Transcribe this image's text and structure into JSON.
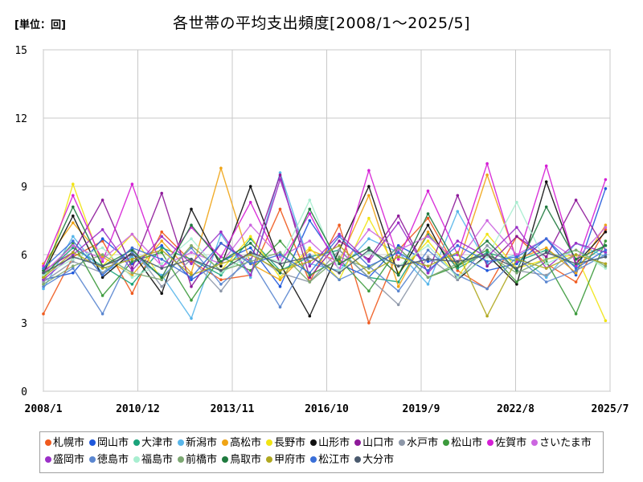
{
  "chart_data": {
    "type": "line",
    "title": "各世帯の平均支出頻度[2008/1～2025/5]",
    "unit_label": "[単位：回]",
    "ylim": [
      0,
      15
    ],
    "y_ticks": [
      "0",
      "3",
      "6",
      "9",
      "12",
      "15"
    ],
    "x_range": [
      "2008/1",
      "2025/7"
    ],
    "x_ticks": [
      "2008/1",
      "2010/12",
      "2013/11",
      "2016/10",
      "2019/9",
      "2022/8",
      "2025/7"
    ],
    "grid": true,
    "legend_position": "bottom",
    "series": [
      {
        "name": "札幌市",
        "color": "#f05a1e",
        "values": [
          3.4,
          5.9,
          6.6,
          4.3,
          7.0,
          5.7,
          4.9,
          5.1,
          8.0,
          4.8,
          7.3,
          3.0,
          6.2,
          7.6,
          5.3,
          4.5,
          6.8,
          5.6,
          4.8,
          7.1
        ]
      },
      {
        "name": "岡山市",
        "color": "#1f58dc",
        "values": [
          4.9,
          5.2,
          6.7,
          5.6,
          6.4,
          4.9,
          5.7,
          6.3,
          4.6,
          7.5,
          5.6,
          5.0,
          6.4,
          5.7,
          6.0,
          5.3,
          5.6,
          6.7,
          5.1,
          8.9
        ]
      },
      {
        "name": "大津市",
        "color": "#1aa37a",
        "values": [
          5.1,
          6.3,
          5.5,
          4.7,
          6.3,
          5.8,
          5.1,
          6.7,
          5.3,
          5.9,
          6.2,
          5.0,
          4.8,
          6.9,
          5.4,
          6.1,
          5.7,
          6.2,
          5.5,
          6.4
        ]
      },
      {
        "name": "新潟市",
        "color": "#58b6ea",
        "values": [
          4.5,
          6.8,
          5.2,
          5.9,
          5.1,
          3.2,
          6.9,
          5.0,
          9.6,
          5.6,
          5.3,
          6.7,
          6.1,
          4.7,
          7.9,
          5.6,
          6.0,
          5.0,
          6.5,
          5.9
        ]
      },
      {
        "name": "高松市",
        "color": "#f0a415",
        "values": [
          5.6,
          7.4,
          5.9,
          5.1,
          6.6,
          5.2,
          9.8,
          5.6,
          4.9,
          6.2,
          5.7,
          8.6,
          4.6,
          7.0,
          5.5,
          9.5,
          5.8,
          6.3,
          5.2,
          7.3
        ]
      },
      {
        "name": "長野市",
        "color": "#f1e414",
        "values": [
          4.7,
          9.1,
          5.5,
          6.9,
          4.9,
          6.4,
          5.3,
          6.8,
          5.0,
          6.3,
          4.9,
          7.6,
          5.2,
          6.6,
          5.0,
          6.9,
          5.4,
          5.8,
          6.0,
          3.1
        ]
      },
      {
        "name": "山形市",
        "color": "#111111",
        "values": [
          5.2,
          7.7,
          5.0,
          6.1,
          4.3,
          8.0,
          5.5,
          9.0,
          5.6,
          3.3,
          6.2,
          9.0,
          5.1,
          7.3,
          4.9,
          6.0,
          4.7,
          9.2,
          5.6,
          7.0
        ]
      },
      {
        "name": "山口市",
        "color": "#8e1a9a",
        "values": [
          5.3,
          6.1,
          8.4,
          5.4,
          8.7,
          4.6,
          6.5,
          5.7,
          9.5,
          5.0,
          6.6,
          5.8,
          7.7,
          5.2,
          8.6,
          5.5,
          6.8,
          5.9,
          8.4,
          6.2
        ]
      },
      {
        "name": "水戸市",
        "color": "#8d97a8",
        "values": [
          4.8,
          5.7,
          5.2,
          6.3,
          4.6,
          5.8,
          4.4,
          6.1,
          5.2,
          4.8,
          6.2,
          5.0,
          3.8,
          5.9,
          4.9,
          6.4,
          5.3,
          5.1,
          6.0,
          5.6
        ]
      },
      {
        "name": "松山市",
        "color": "#3c9a3c",
        "values": [
          5.0,
          6.5,
          4.2,
          5.7,
          6.1,
          4.0,
          5.9,
          5.3,
          6.6,
          5.1,
          5.8,
          4.4,
          6.3,
          5.0,
          5.5,
          6.2,
          4.8,
          5.7,
          3.4,
          6.6
        ]
      },
      {
        "name": "佐賀市",
        "color": "#d51ed5",
        "values": [
          5.5,
          8.6,
          5.7,
          9.1,
          5.4,
          7.2,
          5.9,
          8.3,
          5.6,
          7.8,
          5.3,
          9.7,
          5.8,
          8.8,
          6.0,
          10.0,
          5.7,
          9.9,
          5.5,
          9.3
        ]
      },
      {
        "name": "さいたま市",
        "color": "#cc66e0",
        "values": [
          5.2,
          6.4,
          5.8,
          6.9,
          5.5,
          6.1,
          5.6,
          7.3,
          5.9,
          6.6,
          5.4,
          7.1,
          6.2,
          6.8,
          5.7,
          7.5,
          6.0,
          6.7,
          5.8,
          7.2
        ]
      },
      {
        "name": "盛岡市",
        "color": "#9b30c8",
        "values": [
          4.9,
          6.0,
          7.1,
          5.3,
          6.8,
          5.6,
          7.0,
          5.1,
          9.3,
          5.5,
          6.9,
          5.7,
          7.4,
          5.2,
          6.6,
          5.9,
          7.2,
          5.4,
          6.5,
          6.1
        ]
      },
      {
        "name": "徳島市",
        "color": "#5a86d0",
        "values": [
          4.6,
          5.4,
          3.4,
          6.1,
          5.0,
          6.3,
          4.7,
          5.8,
          3.7,
          6.0,
          4.9,
          5.5,
          4.4,
          6.2,
          5.1,
          4.5,
          5.9,
          4.8,
          5.3,
          6.0
        ]
      },
      {
        "name": "福島市",
        "color": "#a8eed0",
        "values": [
          5.1,
          5.8,
          6.3,
          5.0,
          5.6,
          6.7,
          5.2,
          6.0,
          5.7,
          8.4,
          5.3,
          6.1,
          5.5,
          6.4,
          5.0,
          5.9,
          8.3,
          5.6,
          6.2,
          5.4
        ]
      },
      {
        "name": "前橋市",
        "color": "#7ca872",
        "values": [
          4.7,
          5.5,
          6.0,
          5.2,
          4.9,
          6.4,
          5.3,
          5.7,
          6.1,
          4.8,
          5.9,
          5.4,
          6.3,
          5.0,
          5.6,
          6.0,
          5.2,
          5.8,
          6.2,
          5.5
        ]
      },
      {
        "name": "鳥取市",
        "color": "#1f7a3e",
        "values": [
          5.3,
          8.1,
          5.5,
          6.2,
          5.0,
          7.3,
          5.7,
          6.5,
          5.2,
          8.0,
          5.6,
          6.3,
          5.1,
          7.8,
          5.5,
          6.6,
          5.3,
          8.1,
          5.8,
          6.4
        ]
      },
      {
        "name": "甲府市",
        "color": "#b0a820",
        "values": [
          5.0,
          6.1,
          5.4,
          5.8,
          6.2,
          5.1,
          5.6,
          6.0,
          5.3,
          5.7,
          6.4,
          5.2,
          5.9,
          5.5,
          6.1,
          3.3,
          5.8,
          5.4,
          6.0,
          5.6
        ]
      },
      {
        "name": "松江市",
        "color": "#3a6fd8",
        "values": [
          5.4,
          6.6,
          5.1,
          6.3,
          5.8,
          5.0,
          6.5,
          5.6,
          6.0,
          5.2,
          6.8,
          5.5,
          6.1,
          5.3,
          6.4,
          5.7,
          5.9,
          6.7,
          5.4,
          6.2
        ]
      },
      {
        "name": "大分市",
        "color": "#4a5a6e",
        "values": [
          5.2,
          5.9,
          5.5,
          6.0,
          5.4,
          5.8,
          5.3,
          6.1,
          5.6,
          5.9,
          5.2,
          6.2,
          5.5,
          5.8,
          5.7,
          6.0,
          5.4,
          6.1,
          5.6,
          5.9
        ]
      }
    ]
  }
}
